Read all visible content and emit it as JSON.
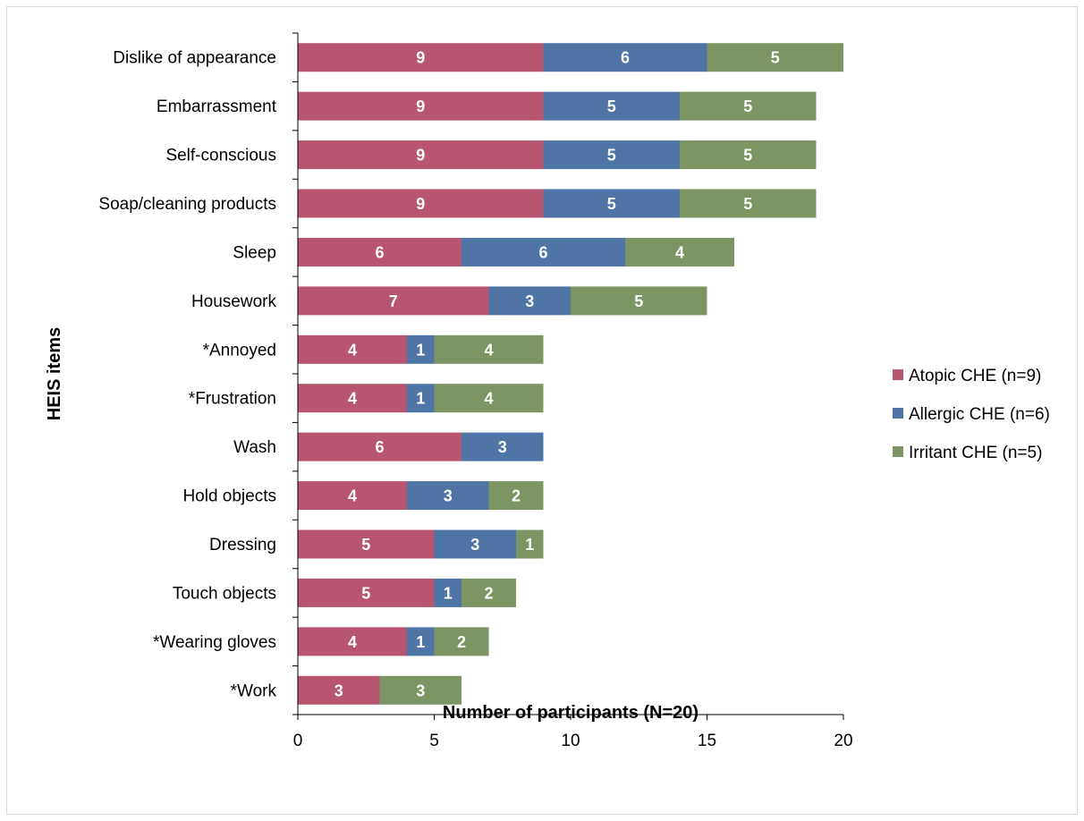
{
  "chart_data": {
    "type": "bar",
    "orientation": "horizontal",
    "stacked": true,
    "categories": [
      "Dislike of appearance",
      "Embarrassment",
      "Self-conscious",
      "Soap/cleaning products",
      "Sleep",
      "Housework",
      "*Annoyed",
      "*Frustration",
      "Wash",
      "Hold objects",
      "Dressing",
      "Touch objects",
      "*Wearing gloves",
      "*Work"
    ],
    "series": [
      {
        "name": "Atopic CHE (n=9)",
        "color": "#b85570",
        "values": [
          9,
          9,
          9,
          9,
          6,
          7,
          4,
          4,
          6,
          4,
          5,
          5,
          4,
          3
        ]
      },
      {
        "name": "Allergic CHE (n=6)",
        "color": "#4f75a6",
        "values": [
          6,
          5,
          5,
          5,
          6,
          3,
          1,
          1,
          3,
          3,
          3,
          1,
          1,
          0
        ]
      },
      {
        "name": "Irritant CHE (n=5)",
        "color": "#7c9563",
        "values": [
          5,
          5,
          5,
          5,
          4,
          5,
          4,
          4,
          0,
          2,
          1,
          2,
          2,
          3
        ]
      }
    ],
    "xlabel": "Number of participants (N=20)",
    "ylabel": "HEIS items",
    "xlim": [
      0,
      20
    ],
    "xticks": [
      0,
      5,
      10,
      15,
      20
    ],
    "grid": false,
    "legend_position": "right"
  }
}
